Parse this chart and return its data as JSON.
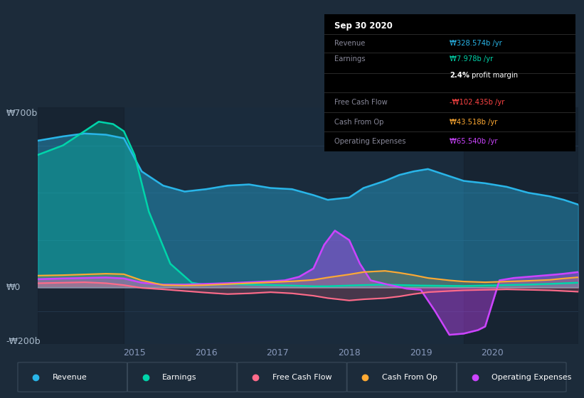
{
  "bg_color": "#1c2b3a",
  "plot_bg_color": "#1a2b3c",
  "grid_color": "#263c52",
  "ylabel_top": "₩700b",
  "ylabel_zero": "₩0",
  "ylabel_bottom": "-₩200b",
  "ylim": [
    -240,
    760
  ],
  "y_zero": 0,
  "xlim_start": 2013.65,
  "xlim_end": 2021.2,
  "xticks": [
    2015,
    2016,
    2017,
    2018,
    2019,
    2020
  ],
  "colors": {
    "revenue": "#29b5e8",
    "earnings": "#00d4aa",
    "free_cash_flow": "#ff6b8a",
    "cash_from_op": "#ffaa33",
    "operating_expenses": "#cc44ff"
  },
  "highlight_left": {
    "xstart": 2013.65,
    "xend": 2014.85
  },
  "highlight_right": {
    "xstart": 2019.6,
    "xend": 2021.2
  },
  "revenue_x": [
    2013.65,
    2014.0,
    2014.3,
    2014.6,
    2014.85,
    2015.1,
    2015.4,
    2015.7,
    2016.0,
    2016.3,
    2016.6,
    2016.9,
    2017.2,
    2017.5,
    2017.7,
    2018.0,
    2018.2,
    2018.5,
    2018.7,
    2018.9,
    2019.1,
    2019.4,
    2019.6,
    2019.9,
    2020.2,
    2020.5,
    2020.8,
    2021.0,
    2021.2
  ],
  "revenue_y": [
    620,
    638,
    650,
    645,
    630,
    490,
    430,
    405,
    415,
    430,
    435,
    420,
    415,
    390,
    370,
    380,
    420,
    450,
    475,
    490,
    500,
    470,
    450,
    440,
    425,
    400,
    385,
    370,
    350
  ],
  "earnings_x": [
    2013.65,
    2014.0,
    2014.3,
    2014.5,
    2014.7,
    2014.85,
    2015.0,
    2015.2,
    2015.5,
    2015.8,
    2016.0,
    2016.3,
    2016.6,
    2016.9,
    2017.2,
    2017.5,
    2017.7,
    2018.0,
    2018.2,
    2018.5,
    2018.7,
    2019.0,
    2019.3,
    2019.6,
    2019.9,
    2020.2,
    2020.5,
    2020.8,
    2021.2
  ],
  "earnings_y": [
    560,
    600,
    660,
    700,
    690,
    660,
    560,
    320,
    100,
    20,
    10,
    15,
    12,
    10,
    8,
    5,
    5,
    8,
    10,
    12,
    10,
    8,
    7,
    6,
    8,
    10,
    12,
    15,
    20
  ],
  "free_cash_flow_x": [
    2013.65,
    2014.0,
    2014.3,
    2014.6,
    2014.85,
    2015.1,
    2015.4,
    2015.7,
    2016.0,
    2016.3,
    2016.6,
    2016.9,
    2017.2,
    2017.5,
    2017.7,
    2018.0,
    2018.2,
    2018.5,
    2018.7,
    2018.9,
    2019.1,
    2019.4,
    2019.6,
    2019.9,
    2020.2,
    2020.5,
    2020.8,
    2021.0,
    2021.2
  ],
  "free_cash_flow_y": [
    18,
    20,
    22,
    18,
    10,
    -2,
    -8,
    -15,
    -22,
    -28,
    -25,
    -20,
    -25,
    -35,
    -45,
    -55,
    -50,
    -45,
    -38,
    -28,
    -20,
    -15,
    -12,
    -10,
    -8,
    -10,
    -12,
    -15,
    -18
  ],
  "cash_from_op_x": [
    2013.65,
    2014.0,
    2014.3,
    2014.6,
    2014.85,
    2015.1,
    2015.4,
    2015.7,
    2016.0,
    2016.3,
    2016.6,
    2016.9,
    2017.2,
    2017.5,
    2017.7,
    2018.0,
    2018.2,
    2018.5,
    2018.7,
    2018.9,
    2019.1,
    2019.4,
    2019.6,
    2019.9,
    2020.2,
    2020.5,
    2020.8,
    2021.0,
    2021.2
  ],
  "cash_from_op_y": [
    50,
    52,
    55,
    58,
    56,
    30,
    10,
    8,
    10,
    14,
    18,
    22,
    26,
    32,
    42,
    55,
    65,
    70,
    62,
    52,
    40,
    30,
    25,
    22,
    25,
    28,
    32,
    38,
    43
  ],
  "operating_expenses_x": [
    2013.65,
    2014.0,
    2014.3,
    2014.6,
    2014.85,
    2015.1,
    2015.4,
    2015.7,
    2016.0,
    2016.3,
    2016.6,
    2016.9,
    2017.1,
    2017.3,
    2017.5,
    2017.65,
    2017.8,
    2018.0,
    2018.15,
    2018.3,
    2018.5,
    2018.65,
    2018.8,
    2019.0,
    2019.2,
    2019.4,
    2019.6,
    2019.8,
    2019.9,
    2020.1,
    2020.3,
    2020.5,
    2020.7,
    2020.9,
    2021.0,
    2021.2
  ],
  "operating_expenses_y": [
    35,
    38,
    40,
    42,
    38,
    20,
    12,
    12,
    15,
    18,
    22,
    26,
    30,
    45,
    80,
    180,
    240,
    200,
    100,
    30,
    15,
    5,
    -5,
    -10,
    -100,
    -200,
    -195,
    -180,
    -165,
    30,
    40,
    45,
    50,
    55,
    58,
    65
  ],
  "legend_items": [
    {
      "label": "Revenue",
      "color": "#29b5e8"
    },
    {
      "label": "Earnings",
      "color": "#00d4aa"
    },
    {
      "label": "Free Cash Flow",
      "color": "#ff6b8a"
    },
    {
      "label": "Cash From Op",
      "color": "#ffaa33"
    },
    {
      "label": "Operating Expenses",
      "color": "#cc44ff"
    }
  ],
  "infobox": {
    "title": "Sep 30 2020",
    "rows": [
      {
        "label": "Revenue",
        "value": "₩328.574b /yr",
        "vcolor": "#29b5e8"
      },
      {
        "label": "Earnings",
        "value": "₩7.978b /yr",
        "vcolor": "#00d4aa"
      },
      {
        "label": "",
        "value": "2.4% profit margin",
        "vcolor": "#ffffff",
        "bold_prefix": "2.4%"
      },
      {
        "label": "Free Cash Flow",
        "value": "-₩102.435b /yr",
        "vcolor": "#ff4444"
      },
      {
        "label": "Cash From Op",
        "value": "₩43.518b /yr",
        "vcolor": "#ffaa33"
      },
      {
        "label": "Operating Expenses",
        "value": "₩65.540b /yr",
        "vcolor": "#cc44ff"
      }
    ]
  }
}
